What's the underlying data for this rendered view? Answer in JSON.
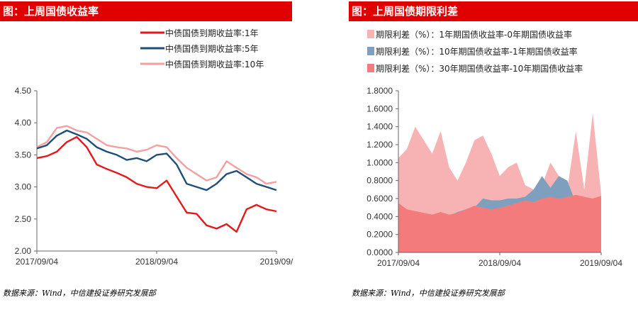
{
  "left": {
    "title": "图：上周国债收益率",
    "source": "数据来源：Wind，中信建投证券研究发展部"
  },
  "right": {
    "title": "图：上周国债期限利差",
    "source": "数据来源：Wind，中信建投证券研究发展部"
  },
  "colors": {
    "title_bg": "#e00000",
    "y1": "#e31a1c",
    "y5": "#1f4e79",
    "y10": "#f4a0a0",
    "spread1": "#f7b3b3",
    "spread2": "#7f9fbf",
    "spread3": "#f47b7b"
  },
  "chart_data": [
    {
      "type": "line",
      "title": "",
      "xlabel": "",
      "ylabel": "",
      "x_ticks": [
        "2017/09/04",
        "2018/09/04",
        "2019/09/"
      ],
      "y_ticks": [
        "4.50",
        "4.00",
        "3.50",
        "3.00",
        "2.50",
        "2.00"
      ],
      "ylim": [
        2.0,
        4.5
      ],
      "legend_position": "top-right",
      "grid": false,
      "x": [
        "2017-09",
        "2017-10",
        "2017-11",
        "2017-12",
        "2018-01",
        "2018-02",
        "2018-03",
        "2018-04",
        "2018-05",
        "2018-06",
        "2018-07",
        "2018-08",
        "2018-09",
        "2018-10",
        "2018-11",
        "2018-12",
        "2019-01",
        "2019-02",
        "2019-03",
        "2019-04",
        "2019-05",
        "2019-06",
        "2019-07",
        "2019-08",
        "2019-09"
      ],
      "series": [
        {
          "name": "中债国债到期收益率:1年",
          "values": [
            3.45,
            3.48,
            3.55,
            3.7,
            3.78,
            3.62,
            3.35,
            3.28,
            3.22,
            3.15,
            3.05,
            3.0,
            2.98,
            3.1,
            2.85,
            2.6,
            2.58,
            2.4,
            2.35,
            2.42,
            2.3,
            2.65,
            2.72,
            2.65,
            2.62
          ]
        },
        {
          "name": "中债国债到期收益率:5年",
          "values": [
            3.6,
            3.65,
            3.8,
            3.88,
            3.82,
            3.75,
            3.62,
            3.55,
            3.5,
            3.42,
            3.45,
            3.4,
            3.5,
            3.52,
            3.35,
            3.05,
            3.0,
            2.95,
            3.05,
            3.2,
            3.25,
            3.15,
            3.05,
            3.0,
            2.95
          ]
        },
        {
          "name": "中债国债到期收益率:10年",
          "values": [
            3.62,
            3.7,
            3.92,
            3.95,
            3.88,
            3.85,
            3.75,
            3.65,
            3.62,
            3.6,
            3.55,
            3.58,
            3.65,
            3.62,
            3.45,
            3.3,
            3.2,
            3.1,
            3.15,
            3.4,
            3.3,
            3.2,
            3.15,
            3.05,
            3.08
          ]
        }
      ]
    },
    {
      "type": "area",
      "title": "",
      "xlabel": "",
      "ylabel": "",
      "x_ticks": [
        "2017/09/04",
        "2018/09/04",
        "2019/09/04"
      ],
      "y_ticks": [
        "1.8000",
        "1.6000",
        "1.4000",
        "1.2000",
        "1.0000",
        "0.8000",
        "0.6000",
        "0.4000",
        "0.2000",
        "0.0000"
      ],
      "ylim": [
        0.0,
        1.8
      ],
      "legend_position": "top",
      "grid": false,
      "x": [
        "2017-09",
        "2017-10",
        "2017-11",
        "2017-12",
        "2018-01",
        "2018-02",
        "2018-03",
        "2018-04",
        "2018-05",
        "2018-06",
        "2018-07",
        "2018-08",
        "2018-09",
        "2018-10",
        "2018-11",
        "2018-12",
        "2019-01",
        "2019-02",
        "2019-03",
        "2019-04",
        "2019-05",
        "2019-06",
        "2019-07",
        "2019-08",
        "2019-09"
      ],
      "series": [
        {
          "name": "期限利差（%）：1年期国债收益率-0年期国债收益率",
          "values": [
            1.05,
            1.15,
            1.4,
            1.25,
            1.1,
            1.35,
            0.95,
            0.8,
            1.0,
            1.25,
            1.3,
            1.1,
            0.85,
            0.95,
            1.0,
            0.75,
            0.7,
            0.75,
            1.0,
            0.85,
            0.7,
            1.35,
            0.7,
            1.55,
            0.65
          ]
        },
        {
          "name": "期限利差（%）：10年期国债收益率-1年期国债收益率",
          "values": [
            0.18,
            0.22,
            0.28,
            0.26,
            0.22,
            0.28,
            0.4,
            0.45,
            0.48,
            0.5,
            0.6,
            0.58,
            0.58,
            0.6,
            0.6,
            0.62,
            0.7,
            0.85,
            0.72,
            0.85,
            0.8,
            0.55,
            0.45,
            0.48,
            0.45
          ]
        },
        {
          "name": "期限利差（%）：30年期国债收益率-10年期国债收益率",
          "values": [
            0.55,
            0.48,
            0.46,
            0.44,
            0.42,
            0.45,
            0.42,
            0.44,
            0.48,
            0.52,
            0.5,
            0.48,
            0.5,
            0.52,
            0.55,
            0.58,
            0.56,
            0.6,
            0.62,
            0.6,
            0.62,
            0.64,
            0.62,
            0.6,
            0.63
          ]
        }
      ]
    }
  ]
}
